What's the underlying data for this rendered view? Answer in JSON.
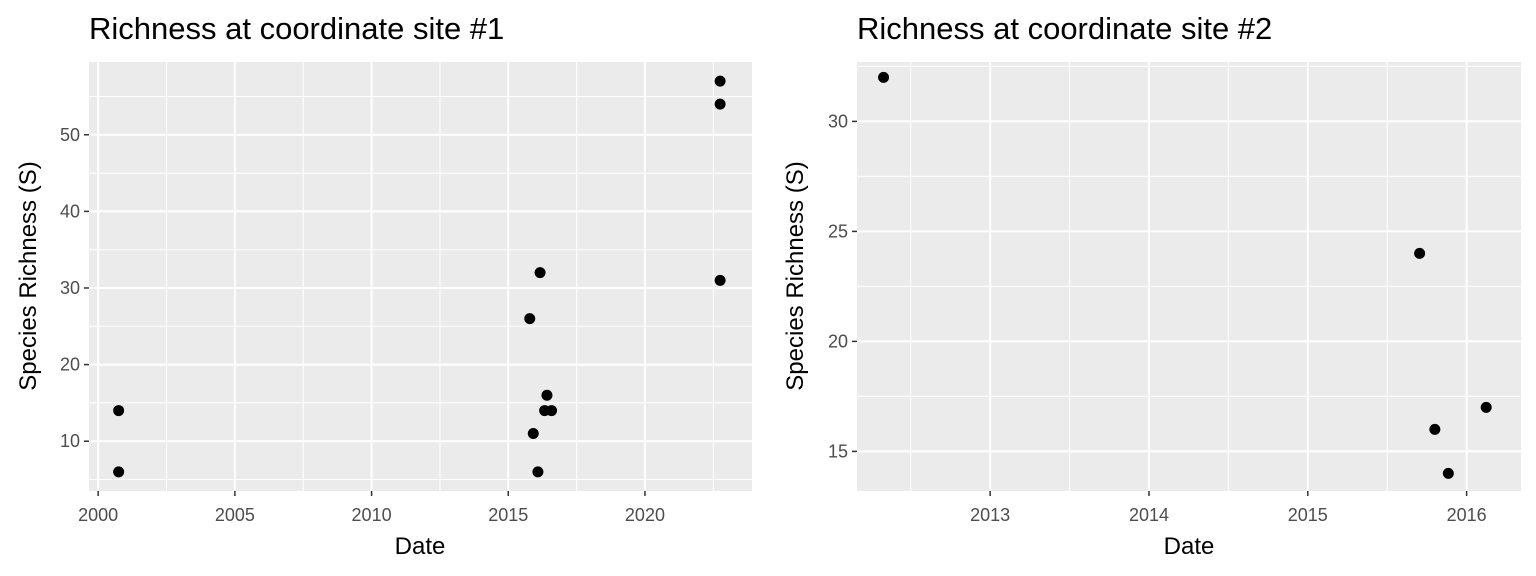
{
  "chart_data": [
    {
      "type": "scatter",
      "title": "Richness at coordinate site #1",
      "xlabel": "Date",
      "ylabel": "Species Richness (S)",
      "xlim": [
        "1999-09-01",
        "2023-12-01"
      ],
      "ylim": [
        3.5,
        59.5
      ],
      "x_ticks": [
        "2000",
        "2005",
        "2010",
        "2015",
        "2020"
      ],
      "y_ticks": [
        "10",
        "20",
        "30",
        "40",
        "50"
      ],
      "grid": true,
      "points": [
        {
          "x": "2000-10-01",
          "y": 14
        },
        {
          "x": "2000-10-01",
          "y": 6
        },
        {
          "x": "2015-10-15",
          "y": 26
        },
        {
          "x": "2015-12-01",
          "y": 11
        },
        {
          "x": "2016-02-01",
          "y": 6
        },
        {
          "x": "2016-03-01",
          "y": 32
        },
        {
          "x": "2016-05-01",
          "y": 14
        },
        {
          "x": "2016-06-01",
          "y": 16
        },
        {
          "x": "2016-08-01",
          "y": 14
        },
        {
          "x": "2022-10-01",
          "y": 57
        },
        {
          "x": "2022-10-01",
          "y": 54
        },
        {
          "x": "2022-10-01",
          "y": 31
        }
      ]
    },
    {
      "type": "scatter",
      "title": "Richness at coordinate site #2",
      "xlabel": "Date",
      "ylabel": "Species Richness (S)",
      "xlim": [
        "2012-03-01",
        "2016-05-05"
      ],
      "ylim": [
        13.2,
        32.7
      ],
      "x_ticks": [
        "2013",
        "2014",
        "2015",
        "2016"
      ],
      "y_ticks": [
        "15",
        "20",
        "25",
        "30"
      ],
      "grid": true,
      "points": [
        {
          "x": "2012-05-01",
          "y": 32
        },
        {
          "x": "2015-09-15",
          "y": 24
        },
        {
          "x": "2015-10-20",
          "y": 16
        },
        {
          "x": "2015-11-20",
          "y": 14
        },
        {
          "x": "2016-02-15",
          "y": 17
        }
      ]
    }
  ]
}
